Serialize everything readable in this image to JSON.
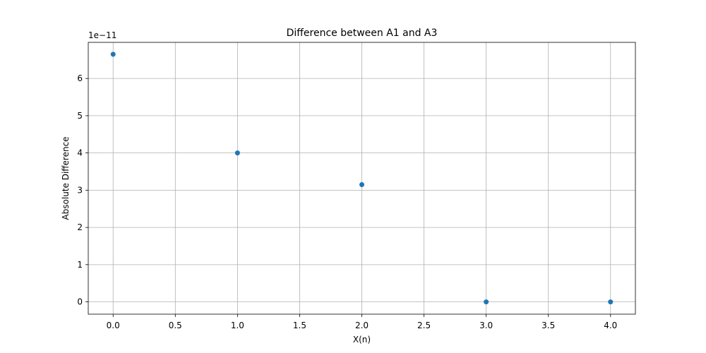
{
  "chart_data": {
    "type": "scatter",
    "title": "Difference between A1 and A3",
    "xlabel": "X(n)",
    "ylabel": "Absolute Difference",
    "y_offset_label": "1e−11",
    "xlim": [
      -0.2,
      4.2
    ],
    "ylim": [
      -3.3e-12,
      6.97e-11
    ],
    "grid": true,
    "color": "#1f77b4",
    "x_ticks": [
      0.0,
      0.5,
      1.0,
      1.5,
      2.0,
      2.5,
      3.0,
      3.5,
      4.0
    ],
    "x_tick_labels": [
      "0.0",
      "0.5",
      "1.0",
      "1.5",
      "2.0",
      "2.5",
      "3.0",
      "3.5",
      "4.0"
    ],
    "y_ticks": [
      0,
      1e-11,
      2e-11,
      3e-11,
      4e-11,
      5e-11,
      6e-11
    ],
    "y_tick_labels": [
      "0",
      "1",
      "2",
      "3",
      "4",
      "5",
      "6"
    ],
    "points": [
      {
        "x": 0,
        "y": 6.65e-11
      },
      {
        "x": 1,
        "y": 4e-11
      },
      {
        "x": 2,
        "y": 3.15e-11
      },
      {
        "x": 3,
        "y": 0
      },
      {
        "x": 4,
        "y": 0
      }
    ]
  }
}
